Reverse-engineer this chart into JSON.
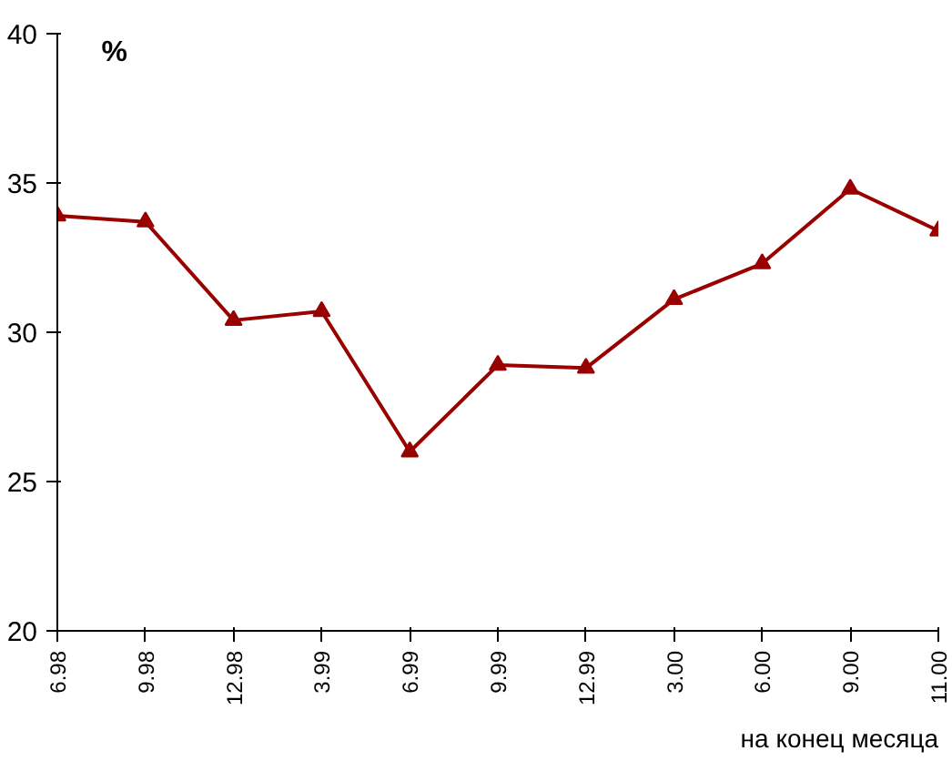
{
  "chart_data": {
    "type": "line",
    "ylabel": "%",
    "xlabel": "на конец месяца",
    "categories": [
      "6.98",
      "9.98",
      "12.98",
      "3.99",
      "6.99",
      "9.99",
      "12.99",
      "3.00",
      "6.00",
      "9.00",
      "11.00"
    ],
    "series": [
      {
        "color": "#990000",
        "values": [
          33.9,
          33.7,
          30.4,
          30.7,
          26.0,
          28.9,
          28.8,
          31.1,
          32.3,
          34.8,
          33.4
        ]
      }
    ],
    "ylim": [
      20,
      40
    ],
    "yticks": [
      20,
      25,
      30,
      35,
      40
    ],
    "grid": false,
    "marker": "triangle",
    "line_style": "solid"
  }
}
